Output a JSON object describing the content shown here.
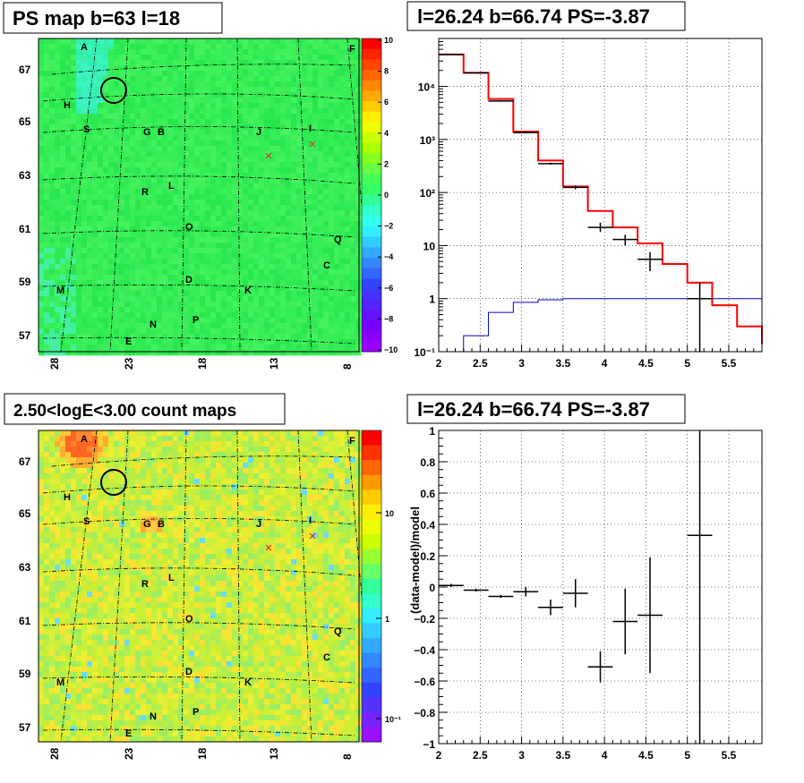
{
  "panels": {
    "ps_map": {
      "title": "PS map b=63 l=18",
      "y_ticks": [
        "67",
        "65",
        "63",
        "61",
        "59",
        "57"
      ],
      "x_ticks": [
        "28",
        "23",
        "18",
        "13",
        "8"
      ],
      "colorbar_ticks": [
        "10",
        "8",
        "6",
        "4",
        "2",
        "0",
        "−2",
        "−4",
        "−6",
        "−8",
        "−10"
      ]
    },
    "count_map": {
      "title": "2.50<logE<3.00 count maps",
      "y_ticks": [
        "67",
        "65",
        "63",
        "61",
        "59",
        "57"
      ],
      "x_ticks": [
        "28",
        "23",
        "18",
        "13",
        "8"
      ],
      "colorbar_ticks": [
        "10",
        "1",
        "10⁻¹"
      ]
    },
    "spectrum": {
      "title": "l=26.24 b=66.74 PS=-3.87"
    },
    "residual": {
      "title": "l=26.24 b=66.74 PS=-3.87"
    }
  },
  "sources": [
    "A",
    "F",
    "H",
    "S",
    "G",
    "B",
    "J",
    "I",
    "R",
    "L",
    "O",
    "Q",
    "C",
    "M",
    "D",
    "K",
    "N",
    "P",
    "E"
  ],
  "chart_data": [
    {
      "type": "heatmap",
      "title": "PS map b=63 l=18",
      "xlabel": "",
      "ylabel": "",
      "x_ticks": [
        28,
        23,
        18,
        13,
        8
      ],
      "y_ticks": [
        67,
        65,
        63,
        61,
        59,
        57
      ],
      "zlim": [
        -10,
        10
      ],
      "dominant_color": "#33ee55"
    },
    {
      "type": "line",
      "title": "l=26.24 b=66.74 PS=-3.87",
      "xlim": [
        2,
        5.9
      ],
      "ylim": [
        0.1,
        80000
      ],
      "yscale": "log",
      "x_ticks": [
        2,
        2.5,
        3,
        3.5,
        4,
        4.5,
        5,
        5.5
      ],
      "y_tick_labels": [
        "10⁻¹",
        "1",
        "10",
        "10²",
        "10³",
        "10⁴"
      ],
      "grid": true,
      "series": [
        {
          "style": "step",
          "color": "#ff0000",
          "edges": [
            2,
            2.3,
            2.6,
            2.9,
            3.2,
            3.5,
            3.8,
            4.1,
            4.4,
            4.7,
            5.0,
            5.3,
            5.6,
            5.9
          ],
          "values": [
            40000,
            18000,
            5800,
            1400,
            400,
            130,
            45,
            22,
            11,
            4.5,
            2.0,
            0.75,
            0.3,
            0.14
          ]
        },
        {
          "style": "step",
          "color": "#0000cc",
          "edges": [
            2,
            2.3,
            2.6,
            2.9,
            3.2,
            3.5,
            3.8,
            4.1,
            4.4,
            4.7,
            5.0,
            5.3,
            5.6,
            5.9
          ],
          "values": [
            0.1,
            0.2,
            0.55,
            0.85,
            0.95,
            1,
            1,
            1,
            1,
            1,
            1,
            1,
            1
          ]
        },
        {
          "style": "errorbar",
          "color": "#000000",
          "points": [
            {
              "x": 2.15,
              "y": 40000,
              "dx": 0.15,
              "lo": 39000,
              "hi": 41000
            },
            {
              "x": 2.45,
              "y": 18000,
              "dx": 0.15,
              "lo": 17500,
              "hi": 18500
            },
            {
              "x": 2.75,
              "y": 5300,
              "dx": 0.15,
              "lo": 5150,
              "hi": 5450
            },
            {
              "x": 3.05,
              "y": 1350,
              "dx": 0.15,
              "lo": 1300,
              "hi": 1400
            },
            {
              "x": 3.35,
              "y": 350,
              "dx": 0.15,
              "lo": 335,
              "hi": 365
            },
            {
              "x": 3.65,
              "y": 125,
              "dx": 0.15,
              "lo": 115,
              "hi": 135
            },
            {
              "x": 3.95,
              "y": 22,
              "dx": 0.15,
              "lo": 18,
              "hi": 27
            },
            {
              "x": 4.25,
              "y": 13,
              "dx": 0.15,
              "lo": 10,
              "hi": 16
            },
            {
              "x": 4.55,
              "y": 5.5,
              "dx": 0.15,
              "lo": 3.3,
              "hi": 7.5
            },
            {
              "x": 5.15,
              "y": 1,
              "dx": 0.15,
              "lo": 0.1,
              "hi": 2
            }
          ]
        }
      ]
    },
    {
      "type": "heatmap",
      "title": "2.50<logE<3.00 count maps",
      "xlabel": "",
      "ylabel": "",
      "x_ticks": [
        28,
        23,
        18,
        13,
        8
      ],
      "y_ticks": [
        67,
        65,
        63,
        61,
        59,
        57
      ],
      "zscale": "log",
      "dominant_color": "#ccee33"
    },
    {
      "type": "scatter",
      "title": "l=26.24 b=66.74 PS=-3.87",
      "xlabel": "",
      "ylabel": "(data-model)/model",
      "xlim": [
        2,
        5.9
      ],
      "ylim": [
        -1,
        1
      ],
      "x_ticks": [
        2,
        2.5,
        3,
        3.5,
        4,
        4.5,
        5,
        5.5
      ],
      "y_ticks": [
        1,
        0.8,
        0.6,
        0.4,
        0.2,
        0,
        -0.2,
        -0.4,
        -0.6,
        -0.8,
        -1
      ],
      "y_tick_labels": [
        "1",
        "0.8",
        "0.6",
        "0.4",
        "0.2",
        "0",
        "−0.2",
        "−0.4",
        "−0.6",
        "−0.8",
        "−1"
      ],
      "grid": true,
      "points": [
        {
          "x": 2.15,
          "y": 0.01,
          "dx": 0.15,
          "dy": 0.01
        },
        {
          "x": 2.45,
          "y": -0.02,
          "dx": 0.15,
          "dy": 0.01
        },
        {
          "x": 2.75,
          "y": -0.06,
          "dx": 0.15,
          "dy": 0.01
        },
        {
          "x": 3.05,
          "y": -0.03,
          "dx": 0.15,
          "dy": 0.03
        },
        {
          "x": 3.35,
          "y": -0.13,
          "dx": 0.15,
          "dy": 0.05
        },
        {
          "x": 3.65,
          "y": -0.04,
          "dx": 0.15,
          "dy": 0.09
        },
        {
          "x": 3.95,
          "y": -0.51,
          "dx": 0.15,
          "dy": 0.1
        },
        {
          "x": 4.25,
          "y": -0.22,
          "dx": 0.15,
          "dy": 0.21
        },
        {
          "x": 4.55,
          "y": -0.18,
          "dx": 0.15,
          "dy": 0.37
        },
        {
          "x": 5.15,
          "y": 0.33,
          "dx": 0.15,
          "dy": 1.4
        }
      ]
    }
  ]
}
